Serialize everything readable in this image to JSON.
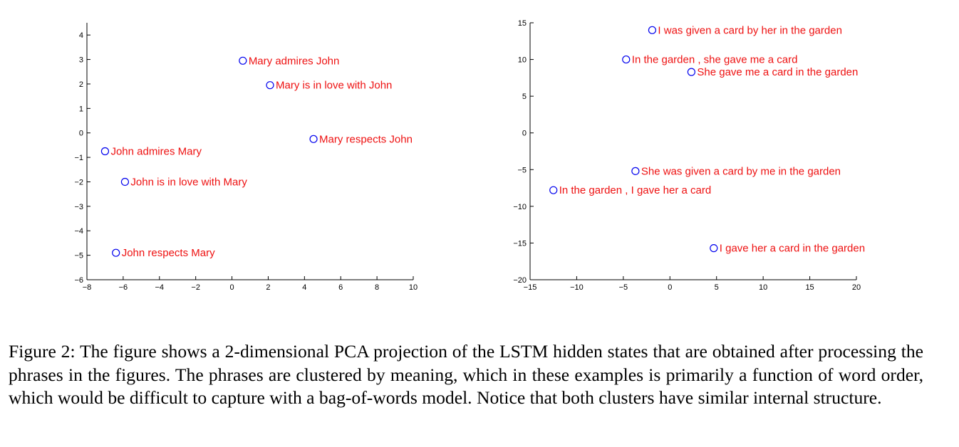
{
  "chart_data": [
    {
      "type": "scatter",
      "xlim": [
        -8,
        10
      ],
      "ylim": [
        -6,
        4.5
      ],
      "xticks": [
        -8,
        -6,
        -4,
        -2,
        0,
        2,
        4,
        6,
        8,
        10
      ],
      "yticks": [
        -6,
        -5,
        -4,
        -3,
        -2,
        -1,
        0,
        1,
        2,
        3,
        4
      ],
      "points": [
        {
          "x": 0.6,
          "y": 2.95,
          "label": "Mary admires John"
        },
        {
          "x": 2.1,
          "y": 1.95,
          "label": "Mary is in love with John"
        },
        {
          "x": 4.5,
          "y": -0.25,
          "label": "Mary respects John"
        },
        {
          "x": -7.0,
          "y": -0.75,
          "label": "John admires Mary"
        },
        {
          "x": -5.9,
          "y": -2.0,
          "label": "John is in love with Mary"
        },
        {
          "x": -6.4,
          "y": -4.9,
          "label": "John respects Mary"
        }
      ],
      "marker_color": "#0000ee",
      "label_color": "#ee1111"
    },
    {
      "type": "scatter",
      "xlim": [
        -15,
        20
      ],
      "ylim": [
        -20,
        15
      ],
      "xticks": [
        -15,
        -10,
        -5,
        0,
        5,
        10,
        15,
        20
      ],
      "yticks": [
        -20,
        -15,
        -10,
        -5,
        0,
        5,
        10,
        15
      ],
      "points": [
        {
          "x": -1.9,
          "y": 14.0,
          "label": "I was given a card by her in the garden"
        },
        {
          "x": -4.7,
          "y": 10.0,
          "label": "In the garden , she gave me a card"
        },
        {
          "x": 2.3,
          "y": 8.3,
          "label": "She gave me a card in the garden"
        },
        {
          "x": -3.7,
          "y": -5.2,
          "label": "She was given a card by me in the garden"
        },
        {
          "x": -12.5,
          "y": -7.8,
          "label": "In the garden , I gave her a card"
        },
        {
          "x": 4.7,
          "y": -15.7,
          "label": "I gave her a card in the garden"
        }
      ],
      "marker_color": "#0000ee",
      "label_color": "#ee1111"
    }
  ],
  "caption": "Figure 2: The figure shows a 2-dimensional PCA projection of the LSTM hidden states that are obtained after processing the phrases in the figures. The phrases are clustered by meaning, which in these examples is primarily a function of word order, which would be difficult to capture with a bag-of-words model. Notice that both clusters have similar internal structure."
}
